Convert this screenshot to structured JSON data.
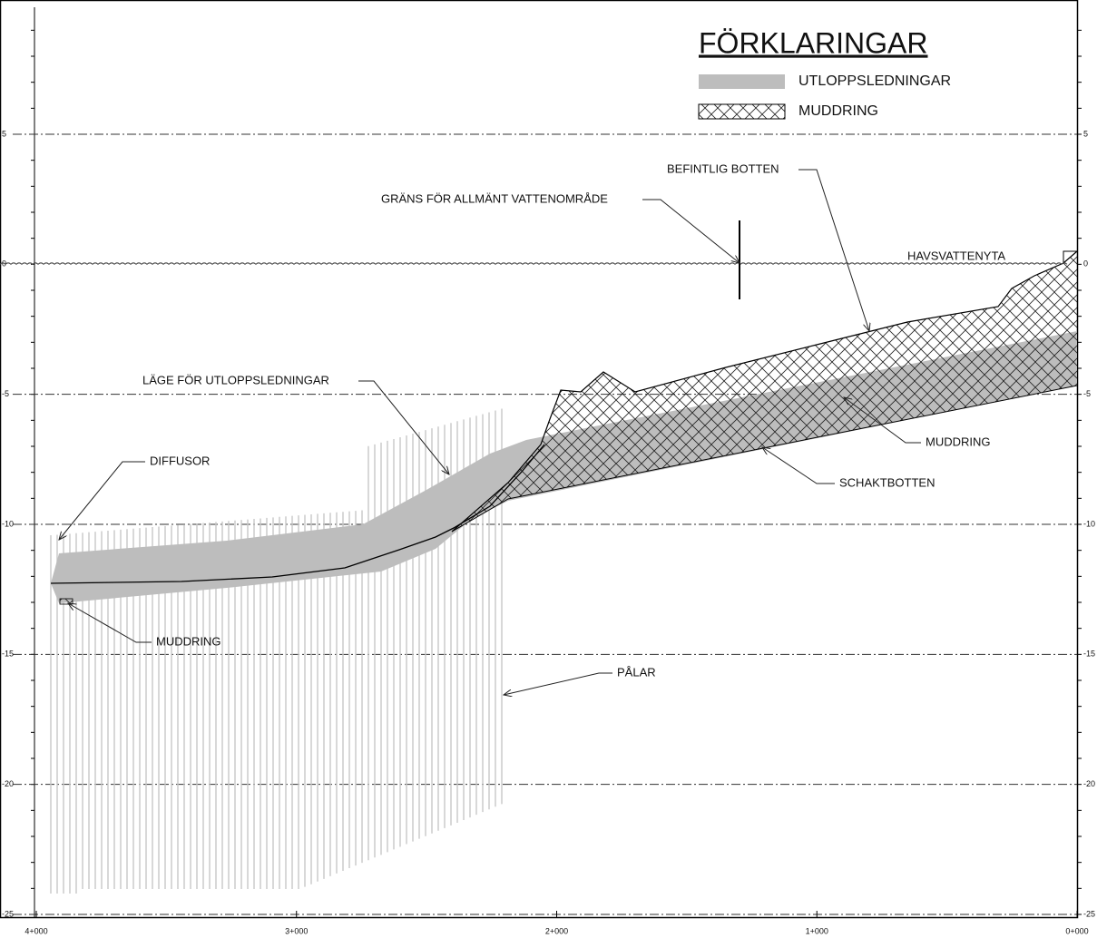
{
  "legend": {
    "title": "FÖRKLARINGAR",
    "items": [
      "UTLOPPSLEDNINGAR",
      "MUDDRING"
    ]
  },
  "annotations": [
    "BEFINTLIG BOTTEN",
    "GRÄNS FÖR ALLMÄNT VATTENOMRÅDE",
    "HAVSVATTENYTA",
    "LÄGE FÖR UTLOPPSLEDNINGAR",
    "DIFFUSOR",
    "MUDDRING",
    "SCHAKTBOTTEN",
    "MUDDRING",
    "PÅLAR"
  ],
  "y_axis": {
    "ticks": [
      5,
      0,
      -5,
      -10,
      -15,
      -20,
      -25
    ]
  },
  "x_axis": {
    "labels": [
      "4+000",
      "3+000",
      "2+000",
      "1+000",
      "0+000"
    ]
  }
}
